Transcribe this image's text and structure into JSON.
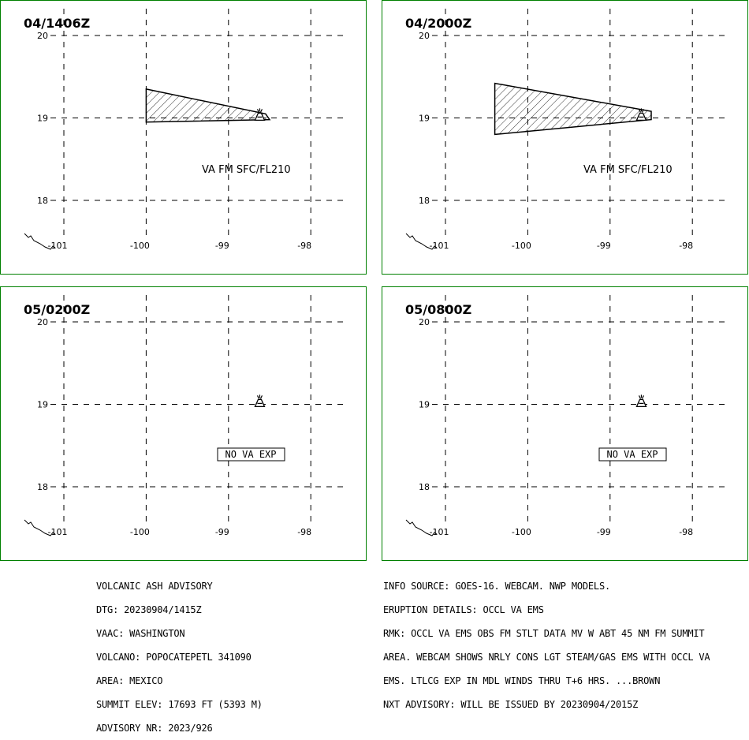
{
  "panels": [
    {
      "time": "04/1406Z",
      "label": "VA FM SFC/FL210",
      "no_va": "",
      "polygon": [
        [
          -100.0,
          19.35
        ],
        [
          -98.55,
          19.05
        ],
        [
          -98.5,
          18.98
        ],
        [
          -100.0,
          18.95
        ]
      ]
    },
    {
      "time": "04/2000Z",
      "label": "VA FM SFC/FL210",
      "no_va": "",
      "polygon": [
        [
          -100.4,
          19.42
        ],
        [
          -98.5,
          19.08
        ],
        [
          -98.5,
          18.98
        ],
        [
          -100.4,
          18.8
        ]
      ]
    },
    {
      "time": "05/0200Z",
      "label": "",
      "no_va": "NO VA EXP",
      "polygon": []
    },
    {
      "time": "05/0800Z",
      "label": "",
      "no_va": "NO VA EXP",
      "polygon": []
    }
  ],
  "axes": {
    "lon_ticks": [
      "-101",
      "-100",
      "-99",
      "-98"
    ],
    "lat_ticks": [
      "20",
      "19",
      "18"
    ]
  },
  "volcano": {
    "lon": -98.62,
    "lat": 19.02,
    "icon": "volcano-icon"
  },
  "advisory_left": [
    "VOLCANIC ASH ADVISORY",
    "DTG: 20230904/1415Z",
    "VAAC: WASHINGTON",
    "VOLCANO: POPOCATEPETL 341090",
    "AREA: MEXICO",
    "SUMMIT ELEV: 17693 FT (5393 M)",
    "ADVISORY NR: 2023/926"
  ],
  "advisory_right": [
    "INFO SOURCE: GOES-16. WEBCAM. NWP MODELS.",
    "ERUPTION DETAILS: OCCL VA EMS",
    "RMK: OCCL VA EMS OBS FM STLT DATA MV W ABT 45 NM FM SUMMIT",
    "AREA. WEBCAM SHOWS NRLY CONS LGT STEAM/GAS EMS WITH OCCL VA",
    "EMS. LTLCG EXP IN MDL WINDS THRU T+6 HRS. ...BROWN",
    "NXT ADVISORY: WILL BE ISSUED BY 20230904/2015Z"
  ],
  "colors": {
    "border": "#008000",
    "line": "#000000"
  }
}
